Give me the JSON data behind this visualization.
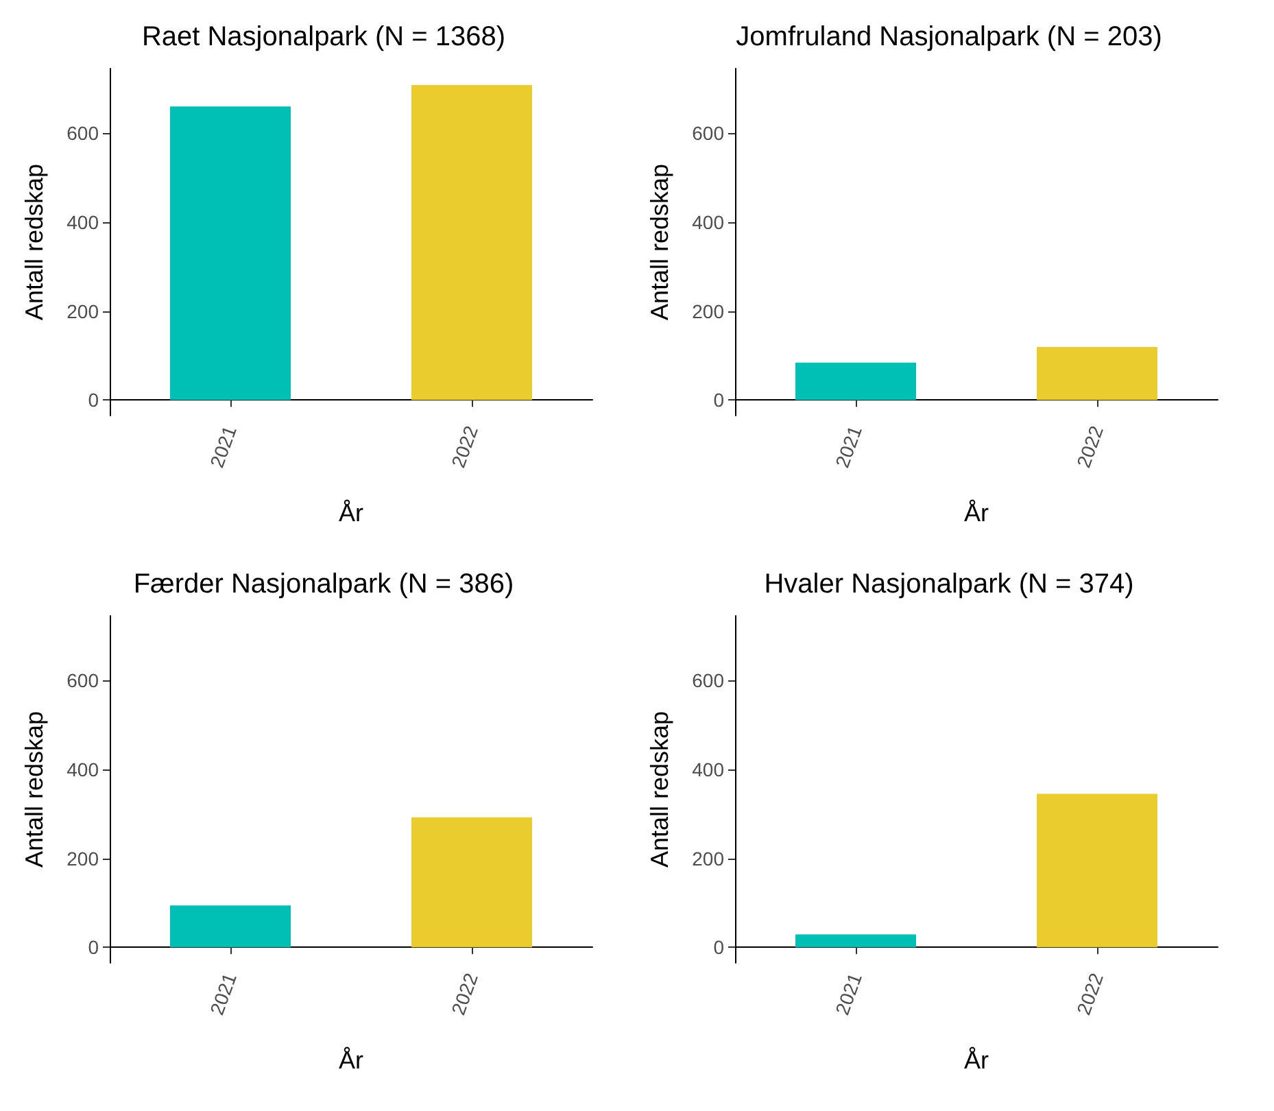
{
  "chart_data": [
    {
      "type": "bar",
      "title": "Raet Nasjonalpark (N = 1368)",
      "xlabel": "År",
      "ylabel": "Antall redskap",
      "categories": [
        "2021",
        "2022"
      ],
      "values": [
        660,
        708
      ],
      "colors": [
        "#00c0b5",
        "#ebcc2e"
      ],
      "ylim": [
        -35,
        745
      ],
      "yticks": [
        0,
        200,
        400,
        600
      ],
      "grid": false
    },
    {
      "type": "bar",
      "title": "Jomfruland Nasjonalpark (N = 203)",
      "xlabel": "År",
      "ylabel": "Antall redskap",
      "categories": [
        "2021",
        "2022"
      ],
      "values": [
        84,
        119
      ],
      "colors": [
        "#00c0b5",
        "#ebcc2e"
      ],
      "ylim": [
        -35,
        745
      ],
      "yticks": [
        0,
        200,
        400,
        600
      ],
      "grid": false
    },
    {
      "type": "bar",
      "title": "Færder Nasjonalpark (N = 386)",
      "xlabel": "År",
      "ylabel": "Antall redskap",
      "categories": [
        "2021",
        "2022"
      ],
      "values": [
        94,
        292
      ],
      "colors": [
        "#00c0b5",
        "#ebcc2e"
      ],
      "ylim": [
        -35,
        745
      ],
      "yticks": [
        0,
        200,
        400,
        600
      ],
      "grid": false
    },
    {
      "type": "bar",
      "title": "Hvaler Nasjonalpark (N = 374)",
      "xlabel": "År",
      "ylabel": "Antall redskap",
      "categories": [
        "2021",
        "2022"
      ],
      "values": [
        29,
        345
      ],
      "colors": [
        "#00c0b5",
        "#ebcc2e"
      ],
      "ylim": [
        -35,
        745
      ],
      "yticks": [
        0,
        200,
        400,
        600
      ],
      "grid": false
    }
  ]
}
